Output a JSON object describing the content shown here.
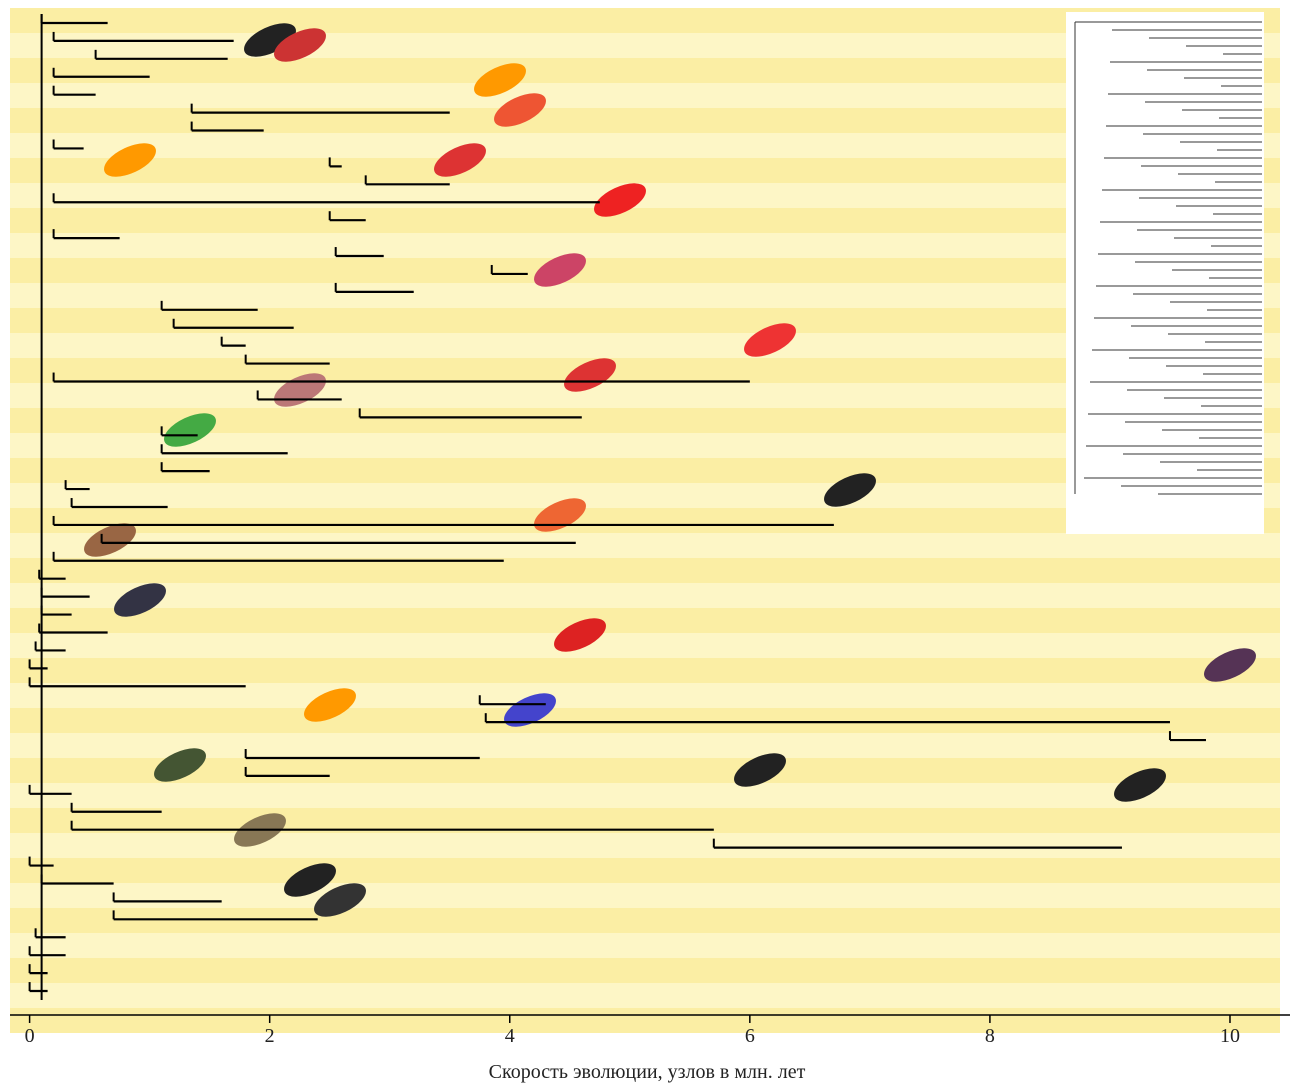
{
  "chart_data": {
    "type": "tree",
    "xlabel": "Скорость эволюции, узлов в млн. лет",
    "xlim": [
      -0.18,
      10.5
    ],
    "xticks": [
      0,
      2,
      4,
      6,
      8,
      10
    ],
    "branches": [
      [
        0.1,
        0.65
      ],
      [
        0.2,
        1.7
      ],
      [
        0.55,
        1.65
      ],
      [
        0.2,
        1.0
      ],
      [
        0.2,
        0.55
      ],
      [
        1.35,
        3.5
      ],
      [
        1.35,
        1.95
      ],
      [
        0.2,
        0.45
      ],
      [
        2.5,
        2.6
      ],
      [
        2.8,
        3.5
      ],
      [
        0.2,
        4.75
      ],
      [
        2.5,
        2.8
      ],
      [
        0.2,
        0.75
      ],
      [
        2.55,
        2.95
      ],
      [
        3.85,
        4.15
      ],
      [
        2.55,
        3.2
      ],
      [
        1.1,
        1.9
      ],
      [
        1.2,
        2.2
      ],
      [
        1.6,
        1.8
      ],
      [
        1.8,
        2.5
      ],
      [
        0.2,
        6.0
      ],
      [
        1.9,
        2.6
      ],
      [
        2.75,
        4.6
      ],
      [
        1.1,
        1.4
      ],
      [
        1.1,
        2.15
      ],
      [
        1.1,
        1.5
      ],
      [
        0.3,
        0.5
      ],
      [
        0.35,
        1.15
      ],
      [
        0.2,
        6.7
      ],
      [
        0.6,
        4.55
      ],
      [
        0.2,
        3.95
      ],
      [
        0.08,
        0.3
      ],
      [
        0.1,
        0.5
      ],
      [
        0.1,
        0.35
      ],
      [
        0.08,
        0.65
      ],
      [
        0.05,
        0.3
      ],
      [
        0.0,
        0.15
      ],
      [
        0.0,
        1.8
      ],
      [
        3.75,
        4.3
      ],
      [
        3.8,
        9.5
      ],
      [
        9.5,
        9.8
      ],
      [
        1.8,
        3.75
      ],
      [
        1.8,
        2.5
      ],
      [
        0.0,
        0.35
      ],
      [
        0.35,
        1.1
      ],
      [
        0.35,
        5.7
      ],
      [
        5.7,
        9.1
      ],
      [
        0.0,
        0.2
      ],
      [
        0.1,
        0.7
      ],
      [
        0.7,
        1.6
      ],
      [
        0.7,
        2.4
      ],
      [
        0.05,
        0.3
      ],
      [
        0.0,
        0.3
      ],
      [
        0.0,
        0.15
      ],
      [
        0.0,
        0.15
      ]
    ]
  }
}
